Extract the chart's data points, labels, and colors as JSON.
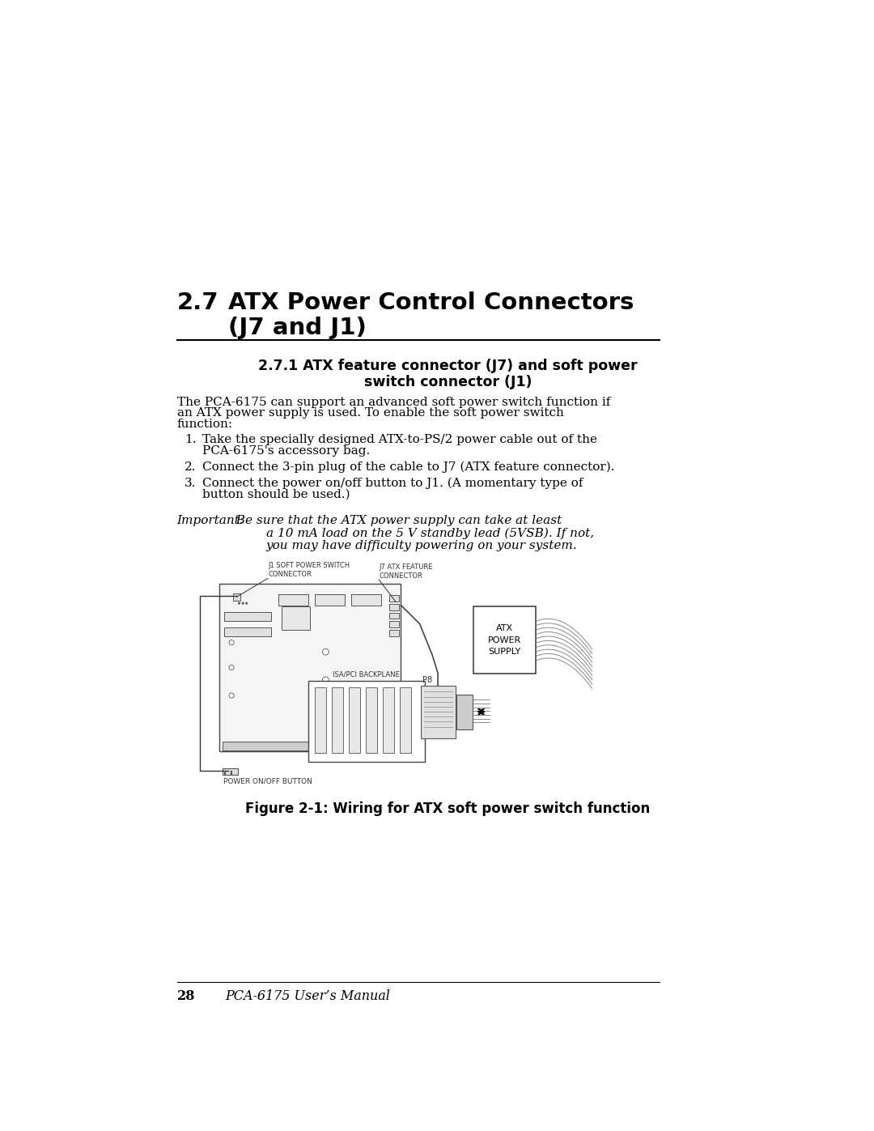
{
  "bg_color": "#ffffff",
  "text_color": "#000000",
  "section_number": "2.7",
  "section_title_line1": "ATX Power Control Connectors",
  "section_title_line2": "(J7 and J1)",
  "subsection_title_line1": "2.7.1 ATX feature connector (J7) and soft power",
  "subsection_title_line2": "switch connector (J1)",
  "body_text_line1": "The PCA-6175 can support an advanced soft power switch function if",
  "body_text_line2": "an ATX power supply is used. To enable the soft power switch",
  "body_text_line3": "function:",
  "list_item1_line1": "Take the specially designed ATX-to-PS/2 power cable out of the",
  "list_item1_line2": "PCA-6175's accessory bag.",
  "list_item2": "Connect the 3-pin plug of the cable to J7 (ATX feature connector).",
  "list_item3_line1": "Connect the power on/off button to J1. (A momentary type of",
  "list_item3_line2": "button should be used.)",
  "important_label": "Important:",
  "important_text_line1": "Be sure that the ATX power supply can take at least",
  "important_text_line2": "a 10 mA load on the 5 V standby lead (5VSB). If not,",
  "important_text_line3": "you may have difficulty powering on your system.",
  "figure_caption": "Figure 2-1: Wiring for ATX soft power switch function",
  "footer_page": "28",
  "footer_manual": "PCA-6175 User’s Manual",
  "label_j1": "J1 SOFT POWER SWITCH\nCONNECTOR",
  "label_j7": "J7 ATX FEATURE\nCONNECTOR",
  "label_psu": "ATX\nPOWER\nSUPPLY",
  "label_isa": "ISA/PCI BACKPLANE",
  "label_p8": "P8",
  "label_btn": "POWER ON/OFF BUTTON"
}
